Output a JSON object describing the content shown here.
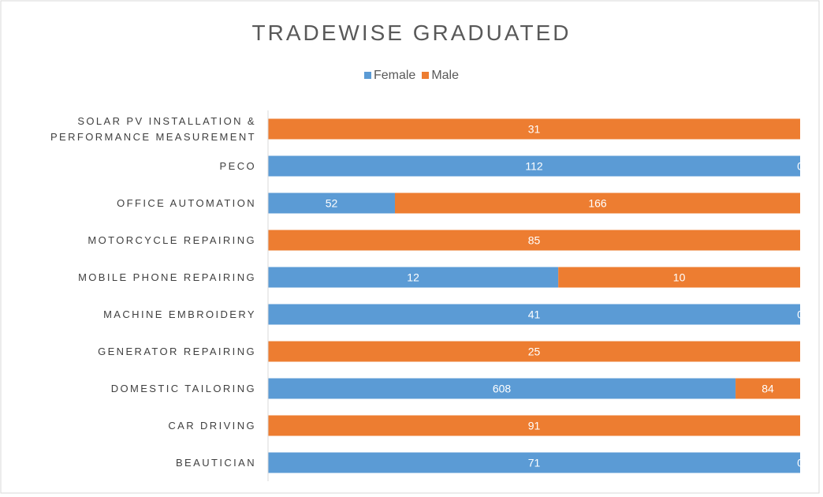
{
  "chart_data": {
    "type": "bar100_horizontal",
    "title": "TRADEWISE GRADUATED",
    "categories": [
      "SOLAR PV INSTALLATION &\nPERFORMANCE MEASUREMENT",
      "PECO",
      "OFFICE AUTOMATION",
      "MOTORCYCLE REPAIRING",
      "MOBILE PHONE REPAIRING",
      "MACHINE EMBROIDERY",
      "GENERATOR REPAIRING",
      "DOMESTIC TAILORING",
      "CAR DRIVING",
      "BEAUTICIAN"
    ],
    "series": [
      {
        "name": "Female",
        "color": "#5b9bd5",
        "values": [
          0,
          112,
          52,
          0,
          12,
          41,
          0,
          608,
          0,
          71
        ]
      },
      {
        "name": "Male",
        "color": "#ed7d31",
        "values": [
          31,
          0,
          166,
          85,
          10,
          0,
          25,
          84,
          91,
          0
        ]
      }
    ],
    "legend": "top"
  }
}
